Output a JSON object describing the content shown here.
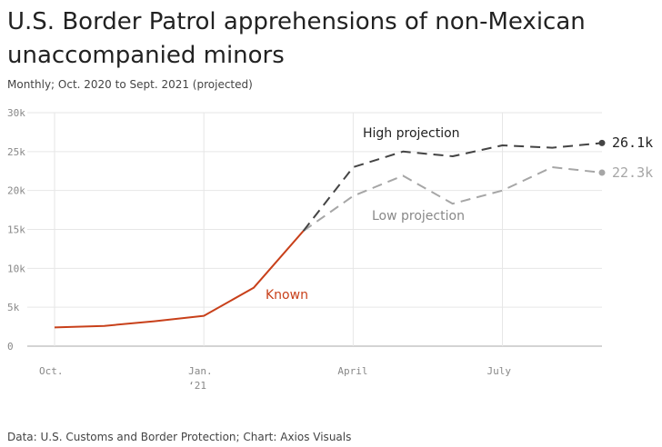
{
  "title": "U.S. Border Patrol apprehensions of non-Mexican unaccompanied minors",
  "subtitle": "Monthly; Oct. 2020 to Sept. 2021 (projected)",
  "source": "Data: U.S. Customs and Border Protection; Chart: Axios Visuals",
  "colors": {
    "known": "#c8401a",
    "high": "#444444",
    "low": "#a6a6a6",
    "grid": "#e6e6e6"
  },
  "chart_data": {
    "type": "line",
    "x": [
      "2020-10",
      "2020-11",
      "2020-12",
      "2021-01",
      "2021-02",
      "2021-03",
      "2021-04",
      "2021-05",
      "2021-06",
      "2021-07",
      "2021-08",
      "2021-09"
    ],
    "ylim": [
      0,
      30000
    ],
    "yticks": [
      0,
      5000,
      10000,
      15000,
      20000,
      25000,
      30000
    ],
    "ytick_labels": [
      "0",
      "5k",
      "10k",
      "15k",
      "20k",
      "25k",
      "30k"
    ],
    "xticks": [
      {
        "x": "2020-10",
        "label": "Oct.",
        "sublabel": ""
      },
      {
        "x": "2021-01",
        "label": "Jan.",
        "sublabel": "‘21"
      },
      {
        "x": "2021-04",
        "label": "April",
        "sublabel": ""
      },
      {
        "x": "2021-07",
        "label": "July",
        "sublabel": ""
      }
    ],
    "grid": true,
    "series": [
      {
        "name": "Known",
        "style": "solid",
        "x": [
          "2020-10",
          "2020-11",
          "2020-12",
          "2021-01",
          "2021-02",
          "2021-03"
        ],
        "values": [
          2400,
          2600,
          3200,
          3900,
          7500,
          14800
        ]
      },
      {
        "name": "High projection",
        "style": "dashed",
        "x": [
          "2021-03",
          "2021-04",
          "2021-05",
          "2021-06",
          "2021-07",
          "2021-08",
          "2021-09"
        ],
        "values": [
          14800,
          23000,
          25000,
          24400,
          25800,
          25500,
          26100
        ]
      },
      {
        "name": "Low projection",
        "style": "dashed",
        "x": [
          "2021-03",
          "2021-04",
          "2021-05",
          "2021-06",
          "2021-07",
          "2021-08",
          "2021-09"
        ],
        "values": [
          14800,
          19300,
          21900,
          18300,
          20000,
          23000,
          22300
        ]
      }
    ],
    "end_labels": {
      "high": "26.1k",
      "low": "22.3k"
    }
  }
}
